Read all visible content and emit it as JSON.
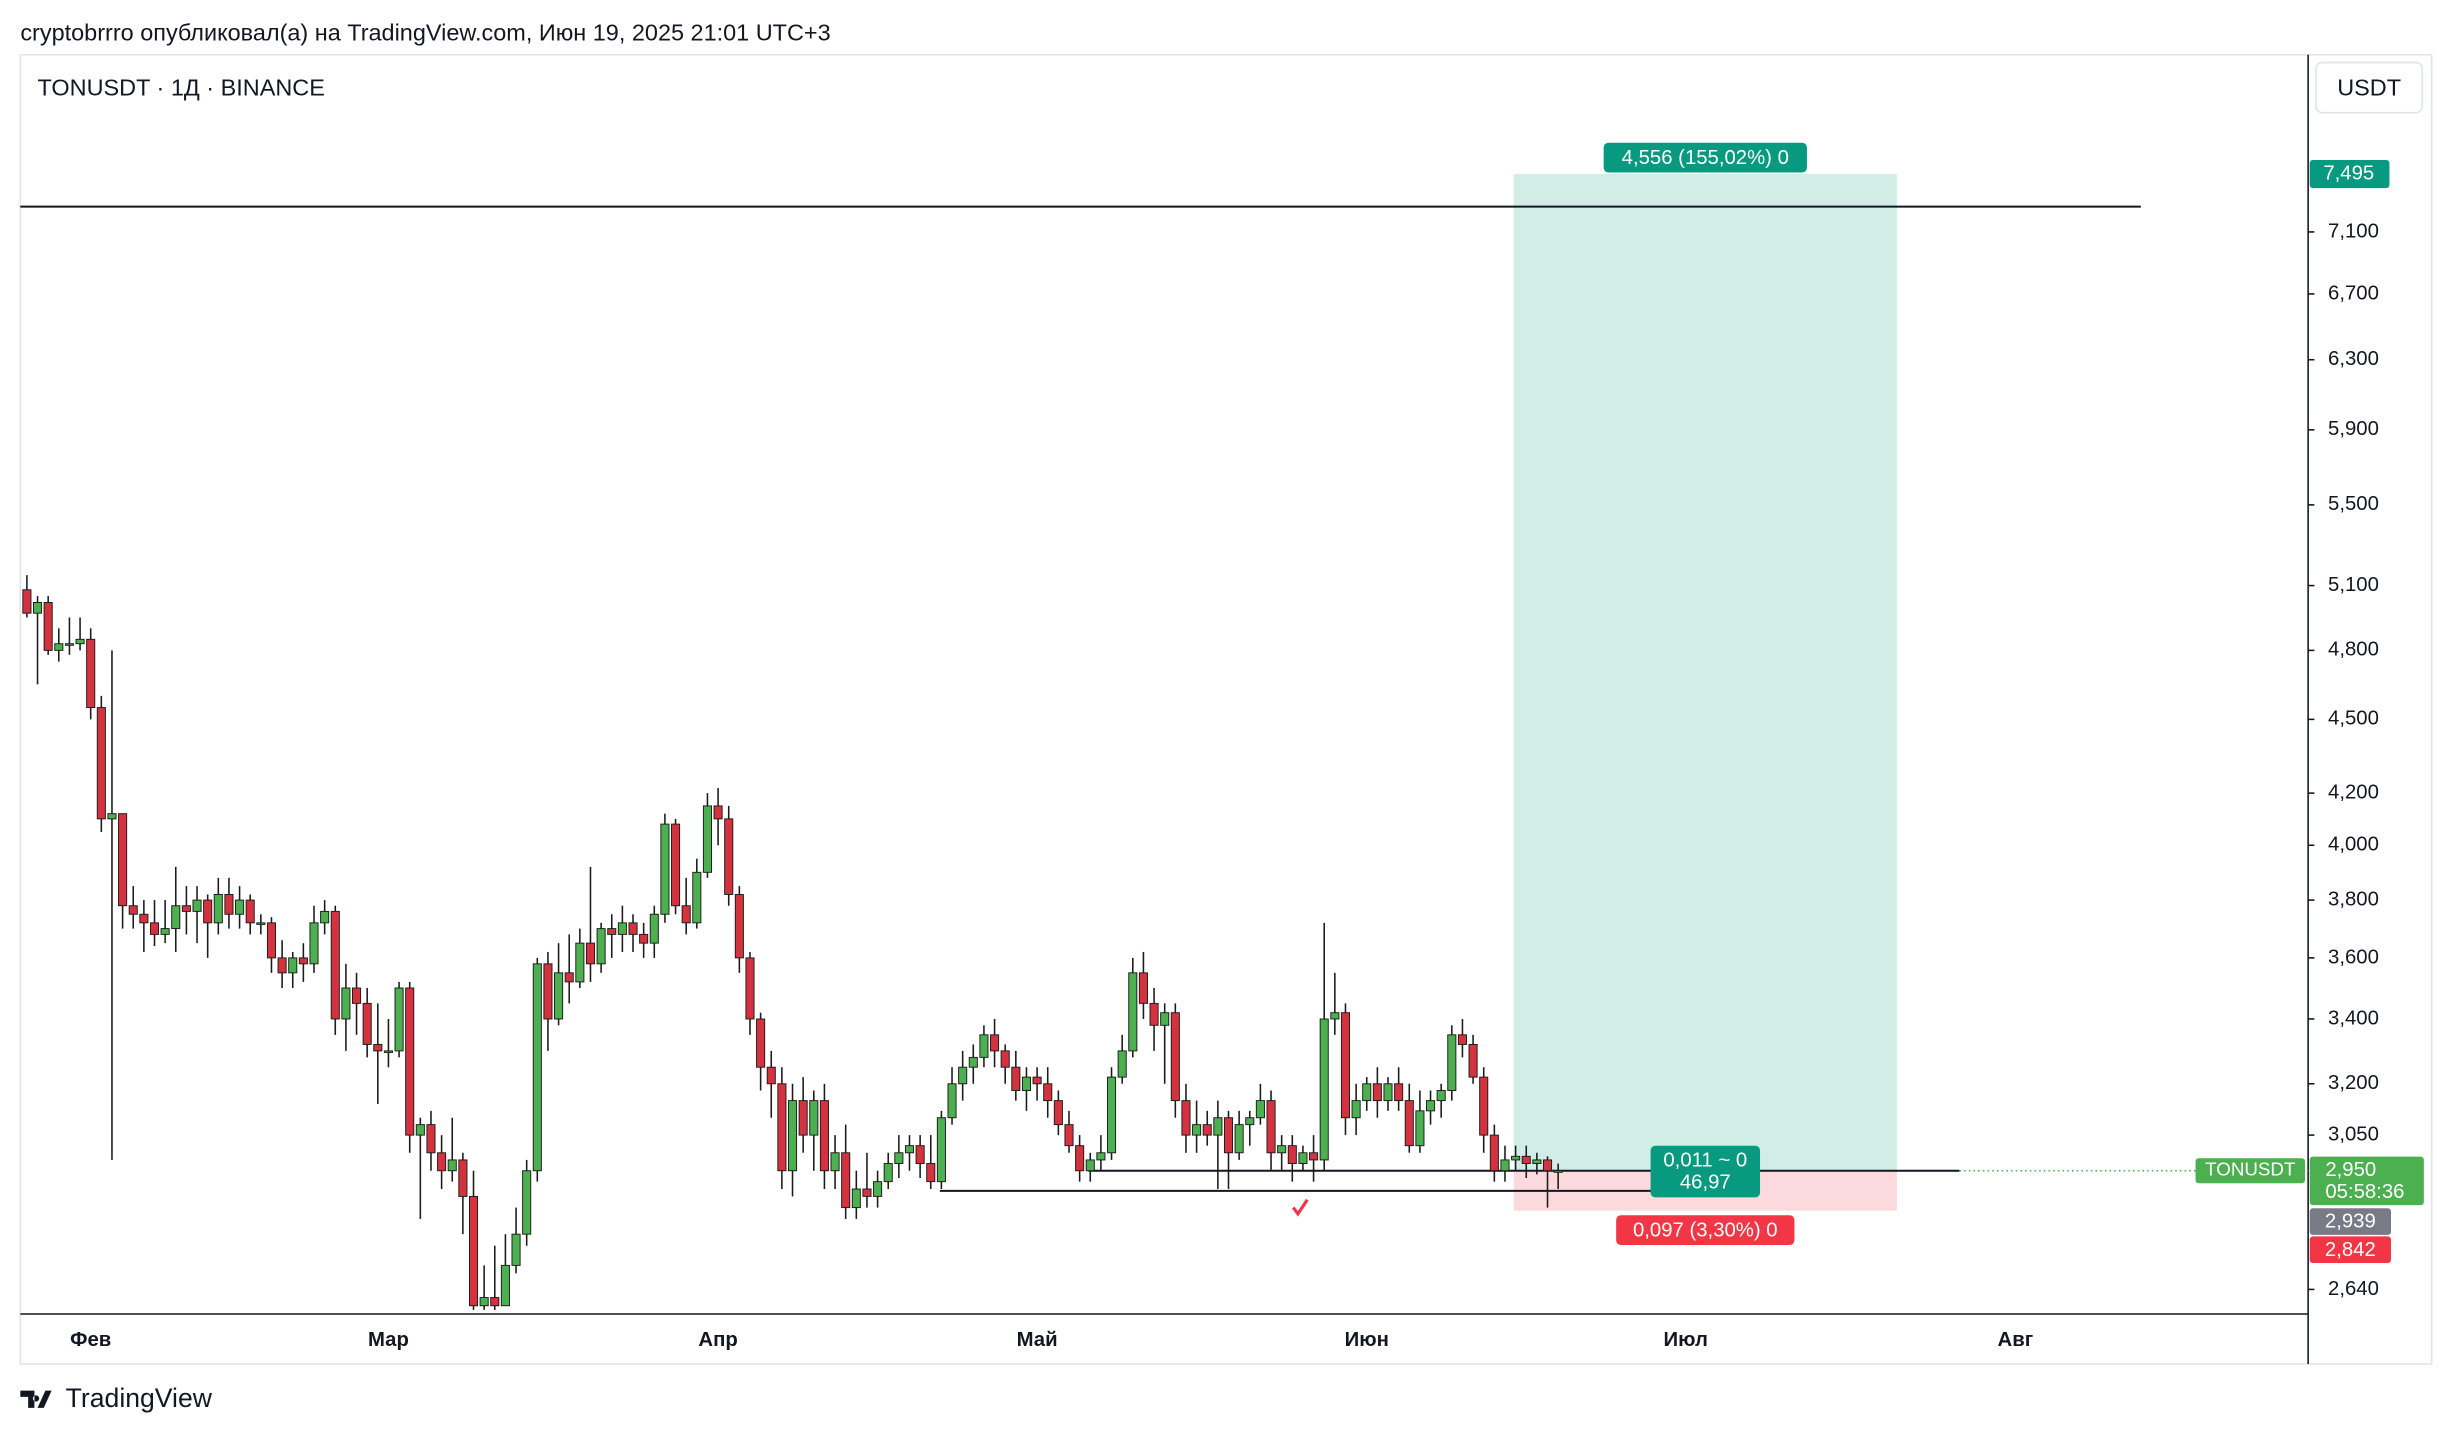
{
  "header": {
    "publisher": "cryptobrrro опубликовал(а) на TradingView.com, Июн 19, 2025 21:01 UTC+3",
    "symbol": "TONUSDT · 1Д · BINANCE",
    "currency": "USDT"
  },
  "chart_data": {
    "type": "candlestick",
    "log_scale": true,
    "up_color": "#4caf50",
    "down_color": "#d3323e",
    "categories": [
      null,
      null,
      null,
      null,
      null,
      null,
      "Фев",
      null,
      null,
      null,
      null,
      null,
      null,
      null,
      null,
      null,
      null,
      null,
      null,
      null,
      null,
      null,
      null,
      null,
      null,
      null,
      null,
      null,
      null,
      null,
      null,
      null,
      null,
      null,
      "Мар",
      null,
      null,
      null,
      null,
      null,
      null,
      null,
      null,
      null,
      null,
      null,
      null,
      null,
      null,
      null,
      null,
      null,
      null,
      null,
      null,
      null,
      null,
      null,
      null,
      null,
      null,
      null,
      null,
      null,
      null,
      "Апр",
      null,
      null,
      null,
      null,
      null,
      null,
      null,
      null,
      null,
      null,
      null,
      null,
      null,
      null,
      null,
      null,
      null,
      null,
      null,
      null,
      null,
      null,
      null,
      null,
      null,
      null,
      null,
      null,
      null,
      "Май",
      null,
      null,
      null,
      null,
      null,
      null,
      null,
      null,
      null,
      null,
      null,
      null,
      null,
      null,
      null,
      null,
      null,
      null,
      null,
      null,
      null,
      null,
      null,
      null,
      null,
      null,
      null,
      null,
      null,
      null,
      "Июн",
      null,
      null,
      null,
      null,
      null,
      null,
      null,
      null,
      null,
      null,
      null,
      null,
      null,
      null,
      null,
      null,
      null,
      null,
      null,
      null,
      null,
      null,
      null,
      null,
      null,
      null,
      null,
      null,
      null,
      "Июл",
      null,
      null,
      null,
      null,
      null,
      null,
      null,
      null,
      null,
      null,
      null,
      null,
      null,
      null,
      null,
      null,
      null,
      null,
      null,
      null,
      null,
      null,
      null,
      null,
      null,
      null,
      null,
      null,
      null,
      null,
      "Авг",
      null,
      null,
      null,
      null,
      null,
      null,
      null,
      null,
      null,
      null,
      null,
      null,
      null,
      null,
      null,
      null,
      null,
      null,
      null,
      null,
      null,
      null,
      null,
      null,
      null,
      null,
      null
    ],
    "open": [
      5.08,
      4.97,
      5.02,
      4.8,
      4.83,
      4.83,
      4.85,
      4.55,
      4.1,
      4.12,
      3.78,
      3.75,
      3.72,
      3.68,
      3.7,
      3.78,
      3.76,
      3.8,
      3.72,
      3.82,
      3.75,
      3.8,
      3.72,
      3.72,
      3.6,
      3.55,
      3.6,
      3.58,
      3.72,
      3.76,
      3.4,
      3.5,
      3.45,
      3.32,
      3.3,
      3.3,
      3.5,
      3.05,
      3.08,
      3.0,
      2.95,
      2.98,
      2.88,
      2.6,
      2.62,
      2.6,
      2.7,
      2.78,
      2.95,
      3.58,
      3.4,
      3.55,
      3.52,
      3.65,
      3.58,
      3.7,
      3.68,
      3.72,
      3.68,
      3.65,
      3.75,
      4.08,
      3.78,
      3.72,
      3.9,
      4.15,
      4.1,
      3.82,
      3.6,
      3.4,
      3.25,
      3.2,
      2.95,
      3.15,
      3.05,
      3.15,
      2.95,
      3.0,
      2.85,
      2.9,
      2.88,
      2.92,
      2.97,
      3.0,
      3.02,
      2.97,
      2.92,
      3.1,
      3.2,
      3.25,
      3.28,
      3.35,
      3.3,
      3.25,
      3.18,
      3.22,
      3.2,
      3.15,
      3.08,
      3.02,
      2.95,
      2.98,
      3.0,
      3.22,
      3.3,
      3.55,
      3.45,
      3.38,
      3.42,
      3.15,
      3.05,
      3.08,
      3.05,
      3.1,
      3.0,
      3.08,
      3.1,
      3.15,
      3.0,
      3.02,
      2.97,
      3.0,
      2.98,
      3.4,
      3.42,
      3.1,
      3.15,
      3.2,
      3.15,
      3.2,
      3.15,
      3.02,
      3.12,
      3.15,
      3.18,
      3.35,
      3.32,
      3.22,
      3.05,
      2.95,
      2.98,
      2.99,
      2.97,
      2.98,
      2.95,
      null,
      null,
      null,
      null,
      null,
      null,
      null,
      null,
      null,
      null,
      null,
      null,
      null,
      null,
      null,
      null,
      null,
      null,
      null,
      null,
      null,
      null,
      null,
      null,
      null,
      null,
      null,
      null,
      null,
      null,
      null,
      null,
      null,
      null,
      null,
      null,
      null,
      null,
      null,
      null,
      null,
      null,
      null,
      null,
      null,
      null,
      null,
      null,
      null,
      null,
      null,
      null,
      null,
      null,
      null,
      null,
      null,
      null,
      null,
      null,
      null,
      null,
      null,
      null,
      null,
      null,
      null,
      null,
      null,
      null
    ],
    "high": [
      5.15,
      5.05,
      5.05,
      4.9,
      4.95,
      4.95,
      4.9,
      4.6,
      4.8,
      4.12,
      3.85,
      3.8,
      3.8,
      3.8,
      3.92,
      3.85,
      3.85,
      3.82,
      3.88,
      3.88,
      3.85,
      3.82,
      3.75,
      3.74,
      3.66,
      3.62,
      3.65,
      3.78,
      3.8,
      3.78,
      3.58,
      3.55,
      3.5,
      3.45,
      3.4,
      3.52,
      3.52,
      3.1,
      3.12,
      3.05,
      3.1,
      3.0,
      2.95,
      2.7,
      2.75,
      2.78,
      2.85,
      2.98,
      3.6,
      3.62,
      3.65,
      3.68,
      3.7,
      3.92,
      3.72,
      3.75,
      3.78,
      3.75,
      3.72,
      3.78,
      4.12,
      4.1,
      3.88,
      3.95,
      4.2,
      4.22,
      4.15,
      3.85,
      3.62,
      3.42,
      3.3,
      3.25,
      3.2,
      3.22,
      3.18,
      3.2,
      3.05,
      3.08,
      2.95,
      3.0,
      2.95,
      3.0,
      3.05,
      3.05,
      3.05,
      3.05,
      3.12,
      3.25,
      3.3,
      3.32,
      3.38,
      3.4,
      3.32,
      3.3,
      3.25,
      3.25,
      3.25,
      3.18,
      3.12,
      3.05,
      3.0,
      3.05,
      3.25,
      3.35,
      3.6,
      3.62,
      3.5,
      3.45,
      3.45,
      3.2,
      3.15,
      3.12,
      3.15,
      3.12,
      3.12,
      3.12,
      3.2,
      3.18,
      3.05,
      3.05,
      3.02,
      3.05,
      3.72,
      3.55,
      3.45,
      3.2,
      3.22,
      3.25,
      3.22,
      3.25,
      3.2,
      3.18,
      3.18,
      3.2,
      3.38,
      3.4,
      3.35,
      3.25,
      3.08,
      3.02,
      3.02,
      3.02,
      3.0,
      2.99,
      2.97,
      null,
      null,
      null,
      null,
      null,
      null,
      null,
      null,
      null,
      null,
      null,
      null,
      null,
      null,
      null,
      null,
      null,
      null,
      null,
      null,
      null,
      null,
      null,
      null,
      null,
      null,
      null,
      null,
      null,
      null,
      null,
      null,
      null,
      null,
      null,
      null,
      null,
      null,
      null,
      null,
      null,
      null,
      null,
      null,
      null,
      null,
      null,
      null,
      null,
      null,
      null,
      null,
      null,
      null,
      null,
      null,
      null,
      null,
      null,
      null,
      null,
      null,
      null,
      null,
      null,
      null,
      null,
      null,
      null,
      null
    ],
    "low": [
      4.95,
      4.65,
      4.78,
      4.75,
      4.78,
      4.8,
      4.5,
      4.05,
      2.98,
      3.7,
      3.7,
      3.62,
      3.64,
      3.65,
      3.62,
      3.68,
      3.65,
      3.6,
      3.68,
      3.7,
      3.7,
      3.68,
      3.68,
      3.55,
      3.5,
      3.5,
      3.52,
      3.55,
      3.68,
      3.35,
      3.3,
      3.35,
      3.28,
      3.14,
      3.25,
      3.28,
      3.0,
      2.82,
      2.95,
      2.9,
      2.92,
      2.78,
      2.59,
      2.59,
      2.59,
      2.6,
      2.68,
      2.75,
      2.92,
      3.3,
      3.38,
      3.45,
      3.5,
      3.52,
      3.55,
      3.6,
      3.62,
      3.62,
      3.6,
      3.6,
      3.72,
      3.75,
      3.68,
      3.7,
      3.88,
      4.0,
      3.78,
      3.55,
      3.35,
      3.18,
      3.1,
      2.9,
      2.88,
      3.0,
      2.95,
      2.9,
      2.9,
      2.82,
      2.82,
      2.85,
      2.85,
      2.9,
      2.93,
      2.95,
      2.93,
      2.9,
      2.9,
      3.08,
      3.15,
      3.2,
      3.25,
      3.25,
      3.2,
      3.15,
      3.12,
      3.15,
      3.1,
      3.05,
      3.0,
      2.92,
      2.92,
      2.95,
      2.98,
      3.2,
      3.28,
      3.4,
      3.3,
      3.2,
      3.1,
      3.0,
      3.0,
      3.02,
      2.9,
      2.9,
      2.98,
      3.02,
      3.08,
      2.95,
      2.95,
      2.92,
      2.95,
      2.92,
      2.95,
      3.35,
      3.05,
      3.05,
      3.12,
      3.1,
      3.12,
      3.12,
      3.0,
      3.0,
      3.08,
      3.1,
      3.15,
      3.28,
      3.2,
      3.0,
      2.92,
      2.92,
      2.95,
      2.93,
      2.94,
      2.85,
      2.9,
      null,
      null,
      null,
      null,
      null,
      null,
      null,
      null,
      null,
      null,
      null,
      null,
      null,
      null,
      null,
      null,
      null,
      null,
      null,
      null,
      null,
      null,
      null,
      null,
      null,
      null,
      null,
      null,
      null,
      null,
      null,
      null,
      null,
      null,
      null,
      null,
      null,
      null,
      null,
      null,
      null,
      null,
      null,
      null,
      null,
      null,
      null,
      null,
      null,
      null,
      null,
      null,
      null,
      null,
      null,
      null,
      null,
      null,
      null,
      null,
      null,
      null,
      null,
      null,
      null,
      null,
      null,
      null,
      null,
      null
    ],
    "close": [
      4.97,
      5.02,
      4.8,
      4.83,
      4.83,
      4.85,
      4.55,
      4.1,
      4.12,
      3.78,
      3.75,
      3.72,
      3.68,
      3.7,
      3.78,
      3.76,
      3.8,
      3.72,
      3.82,
      3.75,
      3.8,
      3.72,
      3.72,
      3.6,
      3.55,
      3.6,
      3.58,
      3.72,
      3.76,
      3.4,
      3.5,
      3.45,
      3.32,
      3.3,
      3.3,
      3.5,
      3.05,
      3.08,
      3.0,
      2.95,
      2.98,
      2.88,
      2.6,
      2.62,
      2.6,
      2.7,
      2.78,
      2.95,
      3.58,
      3.4,
      3.55,
      3.52,
      3.65,
      3.58,
      3.7,
      3.68,
      3.72,
      3.68,
      3.65,
      3.75,
      4.08,
      3.78,
      3.72,
      3.9,
      4.15,
      4.1,
      3.82,
      3.6,
      3.4,
      3.25,
      3.2,
      2.95,
      3.15,
      3.05,
      3.15,
      2.95,
      3.0,
      2.85,
      2.9,
      2.88,
      2.92,
      2.97,
      3.0,
      3.02,
      2.97,
      2.92,
      3.1,
      3.2,
      3.25,
      3.28,
      3.35,
      3.3,
      3.25,
      3.18,
      3.22,
      3.2,
      3.15,
      3.08,
      3.02,
      2.95,
      2.98,
      3.0,
      3.22,
      3.3,
      3.55,
      3.45,
      3.38,
      3.42,
      3.15,
      3.05,
      3.08,
      3.05,
      3.1,
      3.0,
      3.08,
      3.1,
      3.15,
      3.0,
      3.02,
      2.97,
      3.0,
      2.98,
      3.4,
      3.42,
      3.1,
      3.15,
      3.2,
      3.15,
      3.2,
      3.15,
      3.02,
      3.12,
      3.15,
      3.18,
      3.35,
      3.32,
      3.22,
      3.05,
      2.95,
      2.98,
      2.99,
      2.97,
      2.98,
      2.95,
      2.95,
      null,
      null,
      null,
      null,
      null,
      null,
      null,
      null,
      null,
      null,
      null,
      null,
      null,
      null,
      null,
      null,
      null,
      null,
      null,
      null,
      null,
      null,
      null,
      null,
      null,
      null,
      null,
      null,
      null,
      null,
      null,
      null,
      null,
      null,
      null,
      null,
      null,
      null,
      null,
      null,
      null,
      null,
      null,
      null,
      null,
      null,
      null,
      null,
      null,
      null,
      null,
      null,
      null,
      null,
      null,
      null,
      null,
      null,
      null,
      null,
      null,
      null,
      null,
      null,
      null,
      null,
      null,
      null,
      null,
      null
    ],
    "ylim": [
      2.58,
      8.38
    ],
    "yticks": [
      {
        "value": 7.1,
        "label": "7,100"
      },
      {
        "value": 6.7,
        "label": "6,700"
      },
      {
        "value": 6.3,
        "label": "6,300"
      },
      {
        "value": 5.9,
        "label": "5,900"
      },
      {
        "value": 5.5,
        "label": "5,500"
      },
      {
        "value": 5.1,
        "label": "5,100"
      },
      {
        "value": 4.8,
        "label": "4,800"
      },
      {
        "value": 4.5,
        "label": "4,500"
      },
      {
        "value": 4.2,
        "label": "4,200"
      },
      {
        "value": 4.0,
        "label": "4,000"
      },
      {
        "value": 3.8,
        "label": "3,800"
      },
      {
        "value": 3.6,
        "label": "3,600"
      },
      {
        "value": 3.4,
        "label": "3,400"
      },
      {
        "value": 3.2,
        "label": "3,200"
      },
      {
        "value": 3.05,
        "label": "3,050"
      },
      {
        "value": 2.64,
        "label": "2,640"
      }
    ],
    "horizontal_lines": [
      7.27,
      2.95,
      2.895
    ],
    "position": {
      "target": 7.495,
      "target_label": "7,495",
      "entry": 2.95,
      "stop": 2.842,
      "stop_label": "2,842",
      "target_text": "4,556 (155,02%) 0",
      "entry_text": "0,011 ~ 0",
      "entry_ratio": "46,97",
      "stop_text": "0,097 (3,30%) 0"
    },
    "last_price": {
      "symbol": "TONUSDT",
      "value": 2.95,
      "label": "2,950",
      "countdown": "05:58:36"
    },
    "prev_price": {
      "value": 2.939,
      "label": "2,939"
    }
  },
  "footer": {
    "brand": "TradingView"
  }
}
